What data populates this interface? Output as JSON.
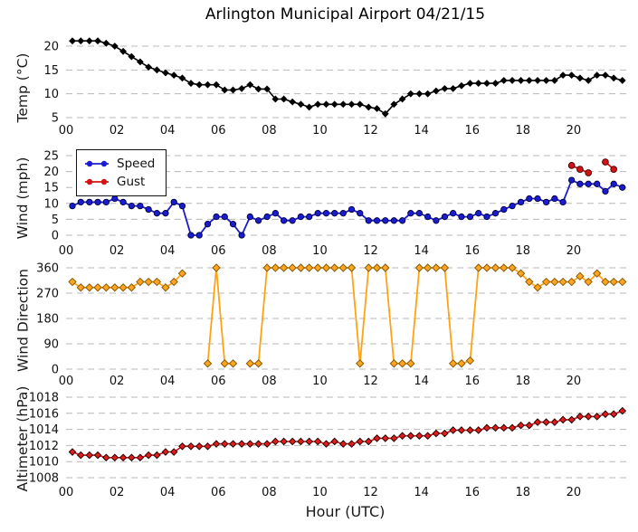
{
  "title": "Arlington Municipal Airport 04/21/15",
  "xlabel": "Hour (UTC)",
  "x_axis": {
    "tick_labels": [
      "00",
      "02",
      "04",
      "06",
      "08",
      "10",
      "12",
      "14",
      "16",
      "18",
      "20"
    ],
    "tick_values": [
      0,
      2,
      4,
      6,
      8,
      10,
      12,
      14,
      16,
      18,
      20
    ],
    "range": [
      0,
      22
    ]
  },
  "legend": {
    "items": [
      {
        "label": "Speed",
        "color": "#1b1bd0"
      },
      {
        "label": "Gust",
        "color": "#d41414"
      }
    ]
  },
  "colors": {
    "temp": "#000000",
    "speed": "#1b1bd0",
    "gust": "#d41414",
    "direction": "#ffa315",
    "direction_edge": "#8b5a00",
    "altimeter": "#d01010",
    "grid": "#b8b8b8",
    "text": "#111111"
  },
  "x_hours": [
    0.25,
    0.58,
    0.92,
    1.25,
    1.58,
    1.92,
    2.25,
    2.58,
    2.92,
    3.25,
    3.58,
    3.92,
    4.25,
    4.58,
    4.92,
    5.25,
    5.58,
    5.92,
    6.25,
    6.58,
    6.92,
    7.25,
    7.58,
    7.92,
    8.25,
    8.58,
    8.92,
    9.25,
    9.58,
    9.92,
    10.25,
    10.58,
    10.92,
    11.25,
    11.58,
    11.92,
    12.25,
    12.58,
    12.92,
    13.25,
    13.58,
    13.92,
    14.25,
    14.58,
    14.92,
    15.25,
    15.58,
    15.92,
    16.25,
    16.58,
    16.92,
    17.25,
    17.58,
    17.92,
    18.25,
    18.58,
    18.92,
    19.25,
    19.58,
    19.92,
    20.25,
    20.58,
    20.92,
    21.25,
    21.58,
    21.92
  ],
  "chart_data": [
    {
      "type": "line",
      "ylabel": "Temp (°C)",
      "yticks": [
        5,
        10,
        15,
        20
      ],
      "ylim": [
        3.5,
        23.0
      ],
      "series": [
        {
          "name": "Temperature",
          "marker": "diamond",
          "values": [
            21.1,
            21.1,
            21.1,
            21.1,
            20.6,
            20.0,
            18.9,
            17.8,
            16.7,
            15.6,
            15.0,
            14.4,
            13.9,
            13.3,
            12.2,
            11.9,
            11.9,
            11.9,
            10.8,
            10.8,
            11.1,
            11.9,
            11.0,
            11.0,
            8.9,
            8.9,
            8.3,
            7.8,
            7.2,
            7.8,
            7.8,
            7.8,
            7.8,
            7.8,
            7.8,
            7.2,
            6.9,
            5.8,
            7.8,
            8.9,
            10.0,
            10.0,
            10.0,
            10.6,
            11.1,
            11.1,
            11.7,
            12.2,
            12.2,
            12.2,
            12.2,
            12.8,
            12.8,
            12.8,
            12.8,
            12.8,
            12.8,
            12.8,
            13.9,
            13.9,
            13.3,
            12.8,
            13.9,
            13.9,
            13.3,
            12.8
          ]
        }
      ]
    },
    {
      "type": "line",
      "ylabel": "Wind (mph)",
      "yticks": [
        0,
        5,
        10,
        15,
        20,
        25
      ],
      "ylim": [
        -1.5,
        26.5
      ],
      "series": [
        {
          "name": "Speed",
          "marker": "circle",
          "values": [
            9.2,
            10.4,
            10.4,
            10.4,
            10.4,
            11.5,
            10.4,
            9.2,
            9.2,
            8.1,
            6.9,
            6.9,
            10.4,
            9.2,
            0,
            0,
            3.5,
            5.8,
            5.8,
            3.5,
            0,
            5.8,
            4.6,
            5.8,
            6.9,
            4.6,
            4.6,
            5.8,
            5.8,
            6.9,
            6.9,
            6.9,
            6.9,
            8.1,
            6.9,
            4.6,
            4.6,
            4.6,
            4.6,
            4.6,
            6.9,
            6.9,
            5.8,
            4.6,
            5.8,
            6.9,
            5.8,
            5.8,
            6.9,
            5.8,
            6.9,
            8.1,
            9.2,
            10.4,
            11.5,
            11.5,
            10.4,
            11.5,
            10.4,
            17.3,
            16.1,
            16.1,
            16.1,
            13.8,
            16.1,
            15.0
          ]
        },
        {
          "name": "Gust",
          "marker": "circle",
          "values": [
            null,
            null,
            null,
            null,
            null,
            null,
            null,
            null,
            null,
            null,
            null,
            null,
            null,
            null,
            null,
            null,
            null,
            null,
            null,
            null,
            null,
            null,
            null,
            null,
            null,
            null,
            null,
            null,
            null,
            null,
            null,
            null,
            null,
            null,
            null,
            null,
            null,
            null,
            null,
            null,
            null,
            null,
            null,
            null,
            null,
            null,
            null,
            null,
            null,
            null,
            null,
            null,
            null,
            null,
            null,
            null,
            null,
            null,
            null,
            21.9,
            20.7,
            19.6,
            null,
            23.0,
            20.7,
            null
          ]
        }
      ]
    },
    {
      "type": "line",
      "ylabel": "Wind Direction",
      "yticks": [
        0,
        90,
        180,
        270,
        360
      ],
      "ylim": [
        -20,
        380
      ],
      "series": [
        {
          "name": "Direction (deg)",
          "marker": "diamond",
          "values": [
            310,
            290,
            290,
            290,
            290,
            290,
            290,
            290,
            310,
            310,
            310,
            290,
            310,
            340,
            null,
            null,
            20,
            360,
            20,
            20,
            null,
            20,
            20,
            360,
            360,
            360,
            360,
            360,
            360,
            360,
            360,
            360,
            360,
            360,
            20,
            360,
            360,
            360,
            20,
            20,
            20,
            360,
            360,
            360,
            360,
            20,
            20,
            30,
            360,
            360,
            360,
            360,
            360,
            340,
            310,
            290,
            310,
            310,
            310,
            310,
            330,
            310,
            340,
            310,
            310,
            310
          ]
        }
      ]
    },
    {
      "type": "line",
      "ylabel": "Altimeter (hPa)",
      "yticks": [
        1008,
        1010,
        1012,
        1014,
        1016,
        1018
      ],
      "ylim": [
        1006.9,
        1019.0
      ],
      "series": [
        {
          "name": "Altimeter",
          "marker": "diamond",
          "values": [
            1011.2,
            1010.8,
            1010.8,
            1010.8,
            1010.5,
            1010.5,
            1010.5,
            1010.5,
            1010.5,
            1010.8,
            1010.8,
            1011.2,
            1011.2,
            1011.9,
            1011.9,
            1011.9,
            1011.9,
            1012.2,
            1012.2,
            1012.2,
            1012.2,
            1012.2,
            1012.2,
            1012.2,
            1012.5,
            1012.5,
            1012.5,
            1012.5,
            1012.5,
            1012.5,
            1012.2,
            1012.5,
            1012.2,
            1012.2,
            1012.5,
            1012.5,
            1012.9,
            1012.9,
            1012.9,
            1013.2,
            1013.2,
            1013.2,
            1013.2,
            1013.5,
            1013.5,
            1013.9,
            1013.9,
            1013.9,
            1013.9,
            1014.2,
            1014.2,
            1014.2,
            1014.2,
            1014.5,
            1014.5,
            1014.9,
            1014.9,
            1014.9,
            1015.2,
            1015.2,
            1015.6,
            1015.6,
            1015.6,
            1015.9,
            1015.9,
            1016.3
          ]
        }
      ]
    }
  ]
}
